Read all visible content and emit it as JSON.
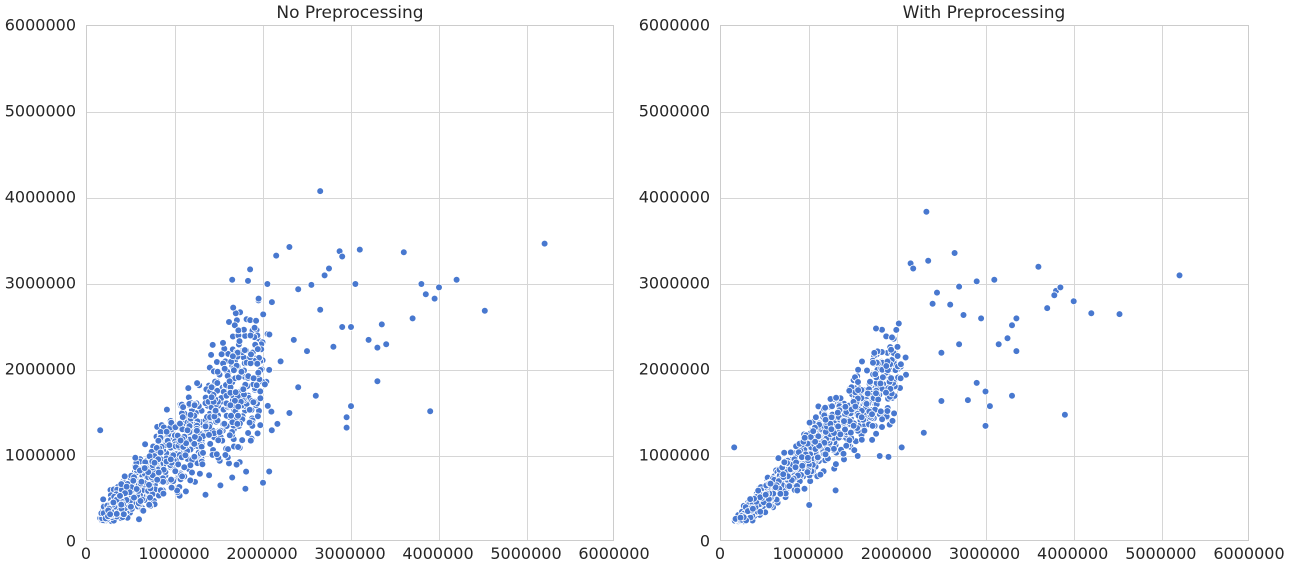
{
  "chart_data": [
    {
      "type": "scatter",
      "title": "No Preprocessing",
      "xlabel": "",
      "ylabel": "",
      "xlim": [
        0,
        6000000
      ],
      "ylim": [
        0,
        6000000
      ],
      "xticks": [
        "0",
        "1000000",
        "2000000",
        "3000000",
        "4000000",
        "5000000",
        "6000000"
      ],
      "yticks": [
        "0",
        "1000000",
        "2000000",
        "3000000",
        "4000000",
        "5000000",
        "6000000"
      ],
      "grid": true,
      "legend": null,
      "marker_color": "#4878cf",
      "cluster": {
        "n": 1100,
        "x_min": 200000,
        "x_max": 2000000,
        "slope": 0.95,
        "intercept": 120000,
        "spread": 0.22,
        "seed": 7
      },
      "points": [
        [
          150000,
          1300000
        ],
        [
          2650000,
          4080000
        ],
        [
          5200000,
          3470000
        ],
        [
          2150000,
          3330000
        ],
        [
          2300000,
          3430000
        ],
        [
          2700000,
          3100000
        ],
        [
          2750000,
          3180000
        ],
        [
          2870000,
          3380000
        ],
        [
          2900000,
          3320000
        ],
        [
          3100000,
          3400000
        ],
        [
          3600000,
          3370000
        ],
        [
          1650000,
          3050000
        ],
        [
          2050000,
          3000000
        ],
        [
          2400000,
          2940000
        ],
        [
          2550000,
          2990000
        ],
        [
          2650000,
          2700000
        ],
        [
          3050000,
          3000000
        ],
        [
          3800000,
          3000000
        ],
        [
          3850000,
          2880000
        ],
        [
          3950000,
          2830000
        ],
        [
          4000000,
          2960000
        ],
        [
          4200000,
          3050000
        ],
        [
          4520000,
          2690000
        ],
        [
          3700000,
          2600000
        ],
        [
          3350000,
          2530000
        ],
        [
          3000000,
          2500000
        ],
        [
          3200000,
          2350000
        ],
        [
          3400000,
          2300000
        ],
        [
          3300000,
          2260000
        ],
        [
          2900000,
          2500000
        ],
        [
          2800000,
          2270000
        ],
        [
          2500000,
          2220000
        ],
        [
          2350000,
          2350000
        ],
        [
          2200000,
          2100000
        ],
        [
          1950000,
          2830000
        ],
        [
          1680000,
          2520000
        ],
        [
          1720000,
          2460000
        ],
        [
          3300000,
          1870000
        ],
        [
          3000000,
          1580000
        ],
        [
          2950000,
          1450000
        ],
        [
          3900000,
          1520000
        ],
        [
          2950000,
          1330000
        ],
        [
          2600000,
          1700000
        ],
        [
          2400000,
          1800000
        ],
        [
          2300000,
          1500000
        ],
        [
          2100000,
          1300000
        ],
        [
          2000000,
          690000
        ],
        [
          2070000,
          820000
        ],
        [
          1800000,
          620000
        ],
        [
          1650000,
          750000
        ],
        [
          1700000,
          900000
        ]
      ]
    },
    {
      "type": "scatter",
      "title": "With Preprocessing",
      "xlabel": "",
      "ylabel": "",
      "xlim": [
        0,
        6000000
      ],
      "ylim": [
        0,
        6000000
      ],
      "xticks": [
        "0",
        "1000000",
        "2000000",
        "3000000",
        "4000000",
        "5000000",
        "6000000"
      ],
      "yticks": [
        "0",
        "1000000",
        "2000000",
        "3000000",
        "4000000",
        "5000000",
        "6000000"
      ],
      "grid": true,
      "legend": null,
      "marker_color": "#4878cf",
      "cluster": {
        "n": 1100,
        "x_min": 200000,
        "x_max": 2000000,
        "slope": 0.97,
        "intercept": 60000,
        "spread": 0.14,
        "seed": 11
      },
      "points": [
        [
          150000,
          1100000
        ],
        [
          2330000,
          3840000
        ],
        [
          5200000,
          3100000
        ],
        [
          2150000,
          3240000
        ],
        [
          2180000,
          3180000
        ],
        [
          2650000,
          3360000
        ],
        [
          2350000,
          3270000
        ],
        [
          2400000,
          2770000
        ],
        [
          2700000,
          2970000
        ],
        [
          2900000,
          3030000
        ],
        [
          3100000,
          3050000
        ],
        [
          3600000,
          3200000
        ],
        [
          3800000,
          2920000
        ],
        [
          3850000,
          2960000
        ],
        [
          3780000,
          2870000
        ],
        [
          4000000,
          2800000
        ],
        [
          4200000,
          2660000
        ],
        [
          4520000,
          2650000
        ],
        [
          3700000,
          2720000
        ],
        [
          3350000,
          2220000
        ],
        [
          3300000,
          2520000
        ],
        [
          3350000,
          2600000
        ],
        [
          3250000,
          2370000
        ],
        [
          3150000,
          2300000
        ],
        [
          2950000,
          2600000
        ],
        [
          2750000,
          2640000
        ],
        [
          2600000,
          2760000
        ],
        [
          2450000,
          2900000
        ],
        [
          2500000,
          2200000
        ],
        [
          2700000,
          2300000
        ],
        [
          2900000,
          1850000
        ],
        [
          3000000,
          1750000
        ],
        [
          3050000,
          1580000
        ],
        [
          3000000,
          1350000
        ],
        [
          3300000,
          1700000
        ],
        [
          3900000,
          1480000
        ],
        [
          2300000,
          1270000
        ],
        [
          2500000,
          1640000
        ],
        [
          2800000,
          1650000
        ],
        [
          2050000,
          1100000
        ],
        [
          1900000,
          990000
        ],
        [
          1720000,
          1350000
        ],
        [
          1300000,
          600000
        ],
        [
          1000000,
          430000
        ],
        [
          1800000,
          1000000
        ],
        [
          1550000,
          1000000
        ]
      ]
    }
  ]
}
